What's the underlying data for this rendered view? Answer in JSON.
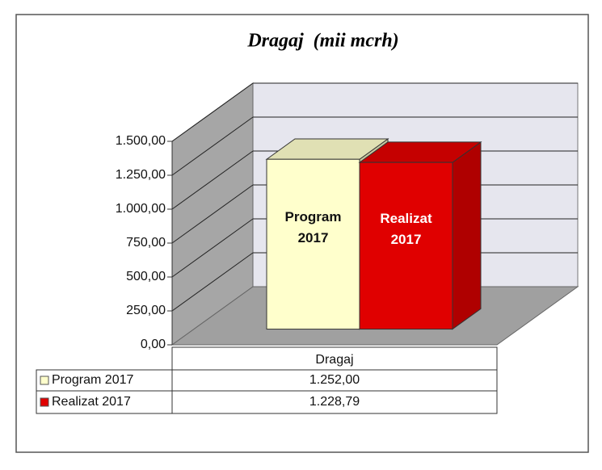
{
  "chart_data": {
    "type": "bar3d",
    "title": "Dragaj  (mii mcrh)",
    "categories": [
      "Dragaj"
    ],
    "series": [
      {
        "name": "Program 2017",
        "color": "#ffffcc",
        "values": [
          1252
        ],
        "value_labels": [
          "1.252,00"
        ]
      },
      {
        "name": "Realizat 2017",
        "color": "#e00000",
        "values": [
          1228.79
        ],
        "value_labels": [
          "1.228,79"
        ]
      }
    ],
    "ylim": [
      0,
      1500
    ],
    "yticks": [
      {
        "value": 0,
        "label": "0,00"
      },
      {
        "value": 250,
        "label": "250,00"
      },
      {
        "value": 500,
        "label": "500,00"
      },
      {
        "value": 750,
        "label": "750,00"
      },
      {
        "value": 1000,
        "label": "1.000,00"
      },
      {
        "value": 1250,
        "label": "1.250,00"
      },
      {
        "value": 1500,
        "label": "1.500,00"
      }
    ],
    "grid": true
  }
}
